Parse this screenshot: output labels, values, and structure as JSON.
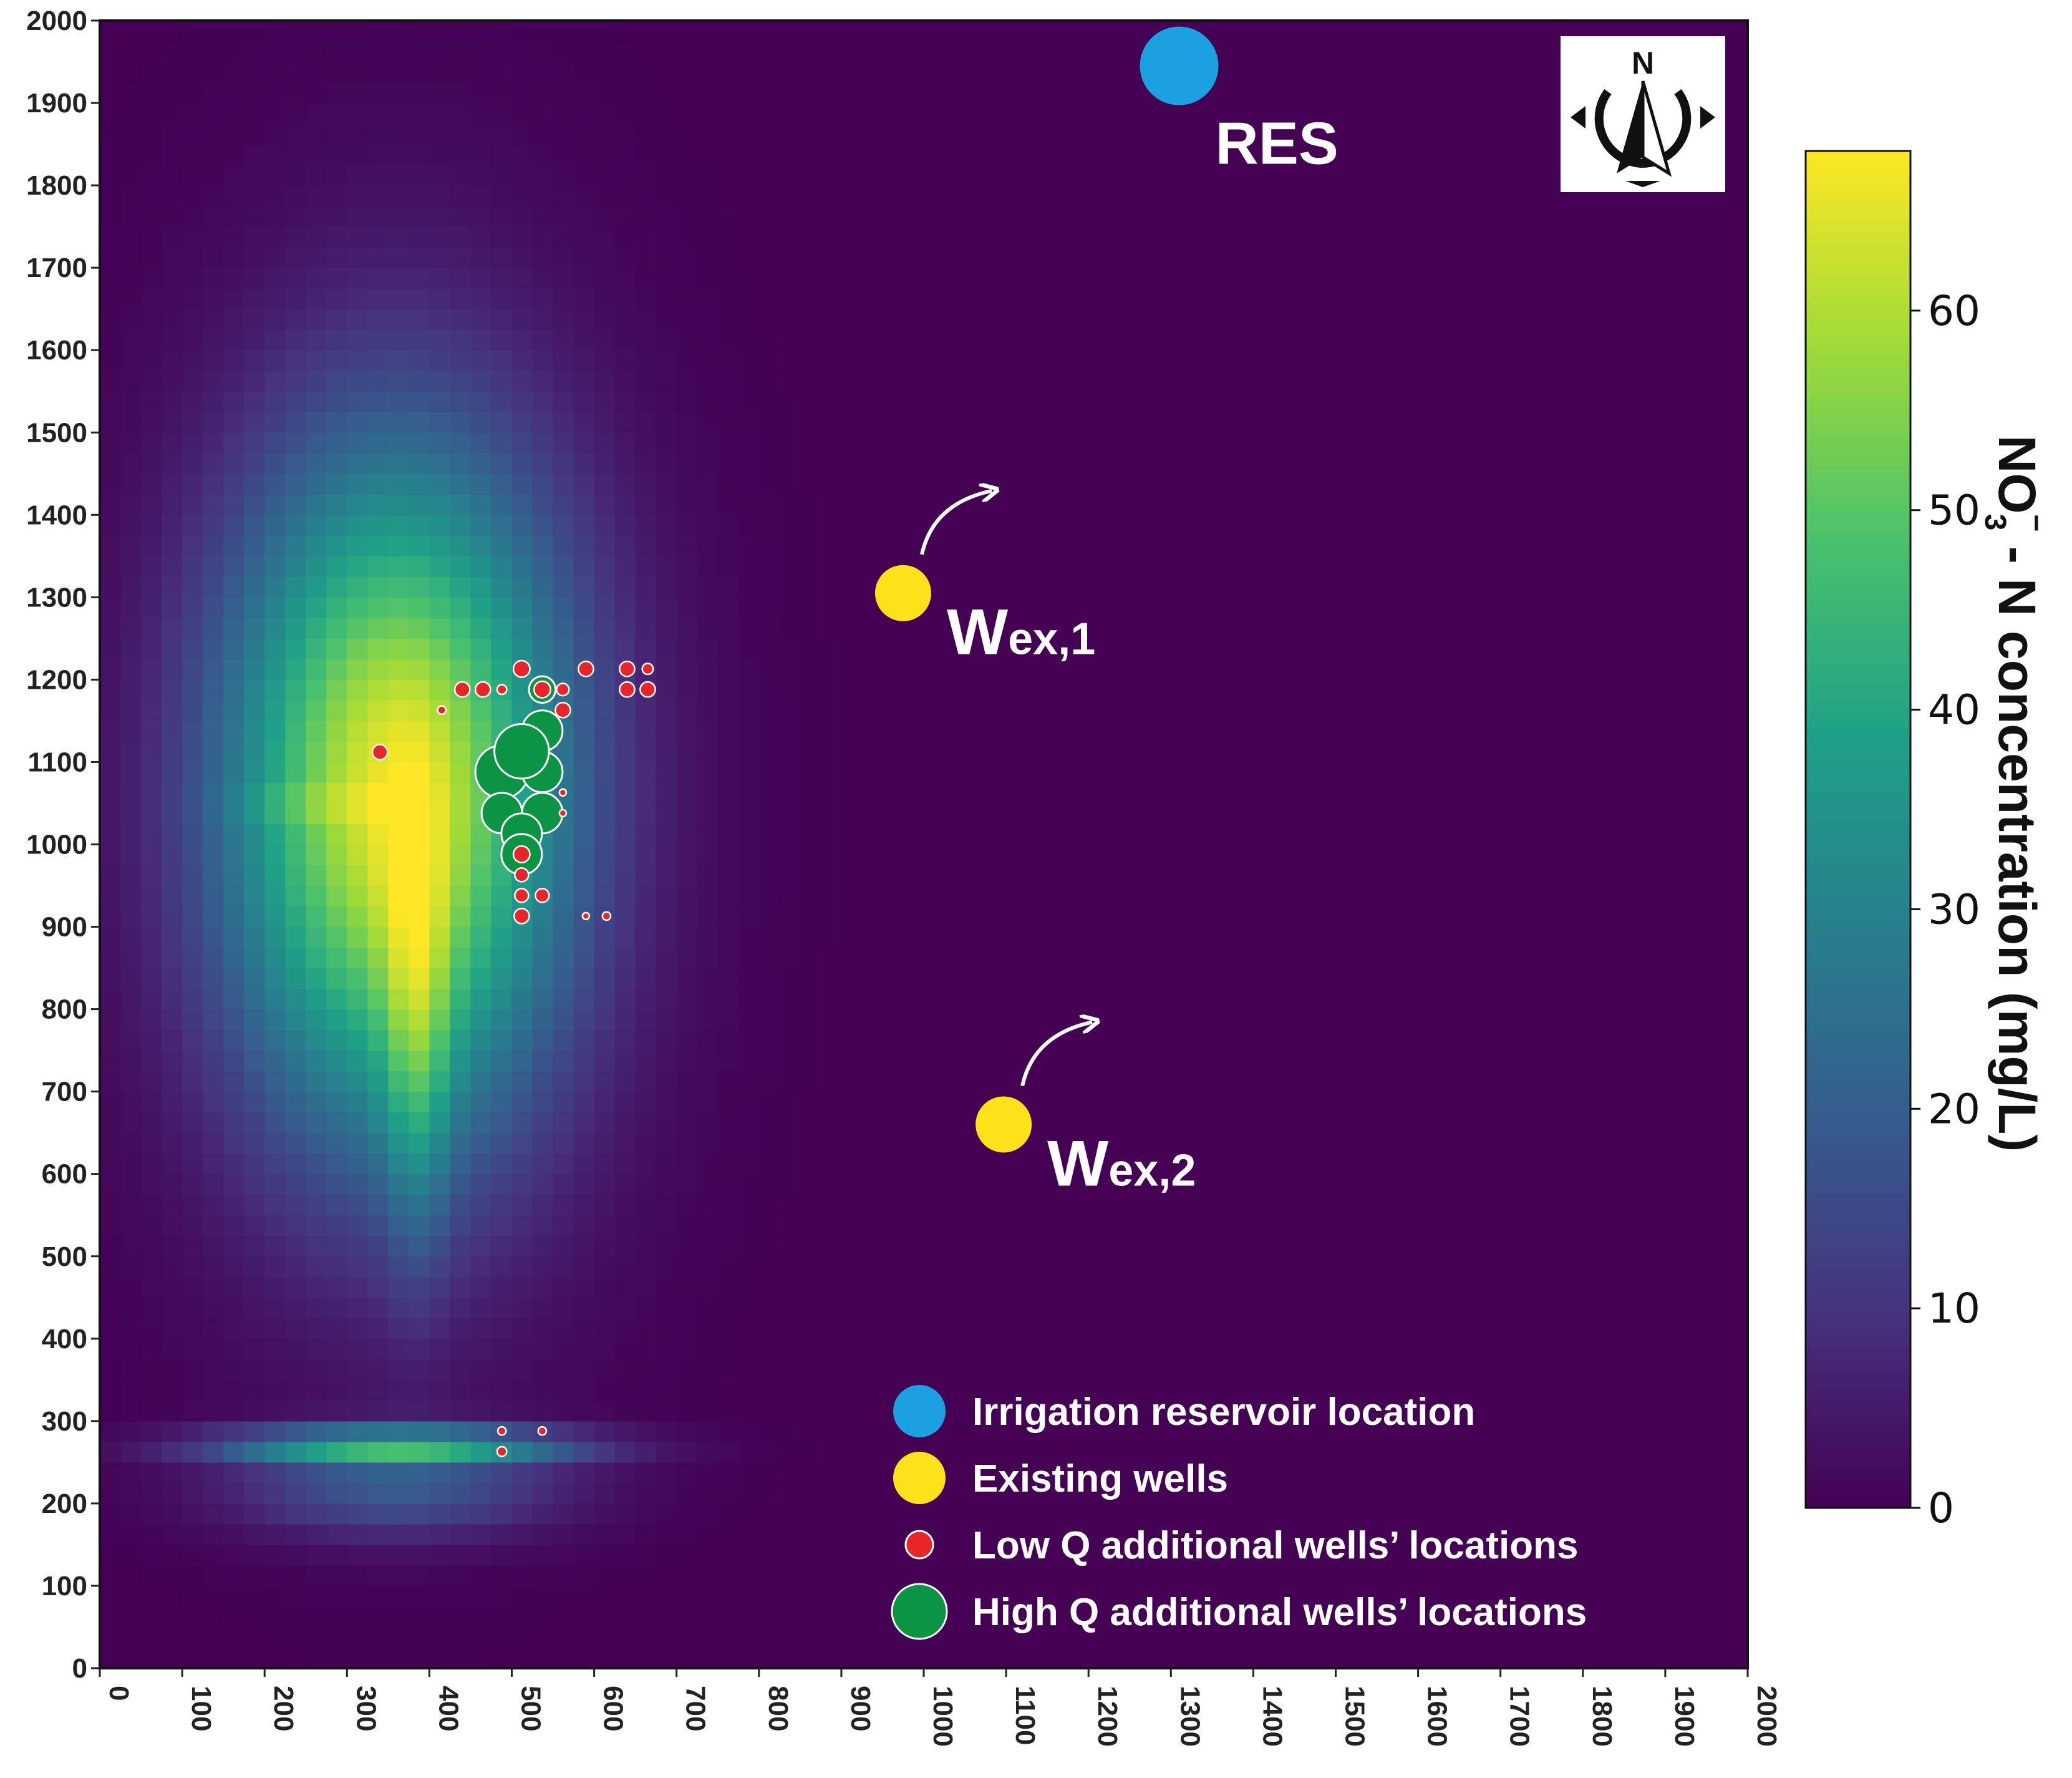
{
  "chart_data": {
    "type": "heatmap",
    "title": "",
    "xlabel": "",
    "ylabel": "",
    "xlim": [
      0,
      2000
    ],
    "ylim": [
      0,
      2000
    ],
    "x_ticks": [
      "0",
      "100",
      "200",
      "300",
      "400",
      "500",
      "600",
      "700",
      "800",
      "900",
      "1000",
      "1100",
      "1200",
      "1300",
      "1400",
      "1500",
      "1600",
      "1700",
      "1800",
      "1900",
      "2000"
    ],
    "y_ticks": [
      "0",
      "100",
      "200",
      "300",
      "400",
      "500",
      "600",
      "700",
      "800",
      "900",
      "1000",
      "1100",
      "1200",
      "1300",
      "1400",
      "1500",
      "1600",
      "1700",
      "1800",
      "1900",
      "2000"
    ],
    "colorbar": {
      "label_main": "NO",
      "label_sub": "3",
      "label_sup": "−",
      "label_rest": " - N concentration (mg/L)",
      "min": 0,
      "max": 68,
      "ticks": [
        "0",
        "10",
        "20",
        "30",
        "40",
        "50",
        "60"
      ],
      "colors": [
        "#440154",
        "#46327e",
        "#365c8d",
        "#277f8e",
        "#1fa187",
        "#4ac16d",
        "#a0da39",
        "#fde725"
      ]
    },
    "plume": [
      {
        "cx": 360,
        "cy": 1060,
        "sx": 210,
        "sy": 420,
        "peak": 66
      },
      {
        "cx": 385,
        "cy": 760,
        "sx": 40,
        "sy": 260,
        "peak": 18
      },
      {
        "cx": 360,
        "cy": 270,
        "sx": 210,
        "sy": 20,
        "peak": 40
      },
      {
        "cx": 360,
        "cy": 220,
        "sx": 200,
        "sy": 60,
        "peak": 18
      },
      {
        "cx": 250,
        "cy": 1050,
        "sx": 110,
        "sy": 12,
        "peak": 10
      }
    ],
    "reservoir": {
      "label": "RES",
      "x": 1310,
      "y": 1945,
      "color": "#1ba1e2"
    },
    "existing_wells": [
      {
        "label": "W",
        "sub": "ex,1",
        "x": 975,
        "y": 1305
      },
      {
        "label": "W",
        "sub": "ex,2",
        "x": 1097,
        "y": 660
      }
    ],
    "existing_well_color": "#fde21a",
    "low_q_wells": [
      {
        "x": 340,
        "y": 1112,
        "r": 11
      },
      {
        "x": 440,
        "y": 1188,
        "r": 11
      },
      {
        "x": 465,
        "y": 1188,
        "r": 11
      },
      {
        "x": 488,
        "y": 1188,
        "r": 7
      },
      {
        "x": 512,
        "y": 1213,
        "r": 12
      },
      {
        "x": 537,
        "y": 1188,
        "r": 12
      },
      {
        "x": 562,
        "y": 1188,
        "r": 9
      },
      {
        "x": 590,
        "y": 1213,
        "r": 11
      },
      {
        "x": 640,
        "y": 1213,
        "r": 11
      },
      {
        "x": 665,
        "y": 1213,
        "r": 8
      },
      {
        "x": 640,
        "y": 1188,
        "r": 11
      },
      {
        "x": 665,
        "y": 1188,
        "r": 11
      },
      {
        "x": 415,
        "y": 1163,
        "r": 6
      },
      {
        "x": 562,
        "y": 1163,
        "r": 11
      },
      {
        "x": 562,
        "y": 1063,
        "r": 5
      },
      {
        "x": 562,
        "y": 1038,
        "r": 5
      },
      {
        "x": 512,
        "y": 988,
        "r": 12
      },
      {
        "x": 512,
        "y": 963,
        "r": 10
      },
      {
        "x": 512,
        "y": 938,
        "r": 10
      },
      {
        "x": 537,
        "y": 938,
        "r": 10
      },
      {
        "x": 512,
        "y": 913,
        "r": 11
      },
      {
        "x": 590,
        "y": 913,
        "r": 5
      },
      {
        "x": 615,
        "y": 913,
        "r": 6
      },
      {
        "x": 488,
        "y": 288,
        "r": 6
      },
      {
        "x": 537,
        "y": 288,
        "r": 6
      },
      {
        "x": 488,
        "y": 263,
        "r": 7
      }
    ],
    "low_q_color": "#e8262a",
    "high_q_wells": [
      {
        "x": 537,
        "y": 1188,
        "r": 17
      },
      {
        "x": 537,
        "y": 1138,
        "r": 26
      },
      {
        "x": 488,
        "y": 1088,
        "r": 34
      },
      {
        "x": 537,
        "y": 1088,
        "r": 26
      },
      {
        "x": 488,
        "y": 1038,
        "r": 26
      },
      {
        "x": 537,
        "y": 1038,
        "r": 26
      },
      {
        "x": 512,
        "y": 1113,
        "r": 35
      },
      {
        "x": 512,
        "y": 1013,
        "r": 26
      },
      {
        "x": 512,
        "y": 988,
        "r": 26
      }
    ],
    "high_q_color": "#0b9444",
    "legend": {
      "position": "bottom-right",
      "items": [
        {
          "label": "Irrigation reservoir location",
          "marker": "reservoir"
        },
        {
          "label": "Existing wells",
          "marker": "existing"
        },
        {
          "label": "Low Q additional wells’ locations",
          "marker": "lowq"
        },
        {
          "label": "High Q additional wells’ locations",
          "marker": "highq"
        }
      ]
    },
    "compass": {
      "letter": "N"
    }
  }
}
